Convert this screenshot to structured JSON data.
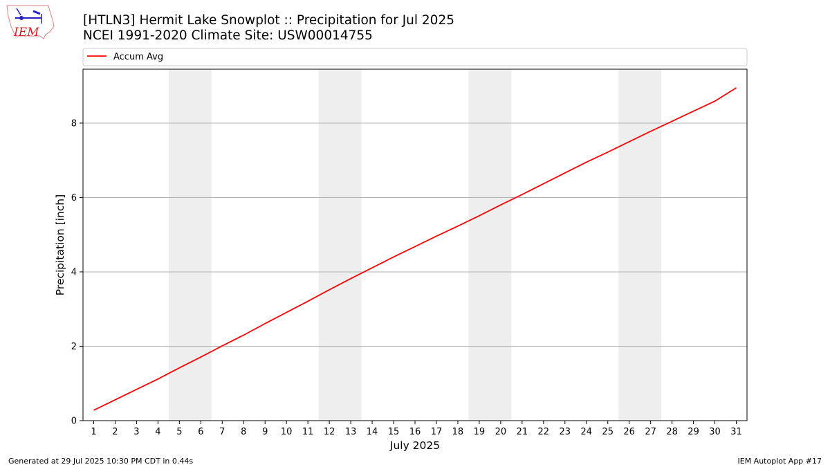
{
  "header": {
    "title_line1": "[HTLN3] Hermit Lake Snowplot :: Precipitation for Jul 2025",
    "title_line2": "NCEI 1991-2020 Climate Site: USW00014755",
    "logo_text": "IEM"
  },
  "footer": {
    "left": "Generated at 29 Jul 2025 10:30 PM CDT in 0.44s",
    "right": "IEM Autoplot App #17"
  },
  "chart_data": {
    "type": "line",
    "xlabel": "July 2025",
    "ylabel": "Precipitation [inch]",
    "x": [
      1,
      2,
      3,
      4,
      5,
      6,
      7,
      8,
      9,
      10,
      11,
      12,
      13,
      14,
      15,
      16,
      17,
      18,
      19,
      20,
      21,
      22,
      23,
      24,
      25,
      26,
      27,
      28,
      29,
      30,
      31
    ],
    "xlim": [
      0.5,
      31.5
    ],
    "ylim": [
      0,
      9.45
    ],
    "yticks": [
      0,
      2,
      4,
      6,
      8
    ],
    "grid": "y",
    "weekend_shading": [
      [
        4.5,
        6.5
      ],
      [
        11.5,
        13.5
      ],
      [
        18.5,
        20.5
      ],
      [
        25.5,
        27.5
      ]
    ],
    "legend_position": "top",
    "series": [
      {
        "name": "Accum Avg",
        "color": "#ff0000",
        "values": [
          0.28,
          0.56,
          0.84,
          1.12,
          1.42,
          1.71,
          2.01,
          2.3,
          2.61,
          2.91,
          3.21,
          3.52,
          3.82,
          4.11,
          4.4,
          4.68,
          4.96,
          5.23,
          5.51,
          5.8,
          6.08,
          6.37,
          6.66,
          6.95,
          7.22,
          7.5,
          7.78,
          8.05,
          8.32,
          8.59,
          8.95
        ]
      }
    ]
  }
}
